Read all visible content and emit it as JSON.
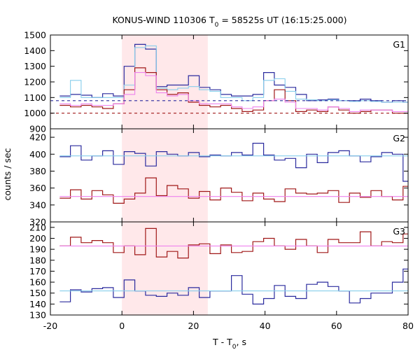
{
  "chart_data": {
    "type": "line",
    "title": {
      "pre": "KONUS-WIND 110306 T",
      "sub": "0",
      "post": " = 58525s UT (16:15:25.000)"
    },
    "xlabel": {
      "pre": "T - T",
      "sub": "0",
      "post": ", s"
    },
    "ylabel": "counts / sec",
    "xlim": [
      -20,
      80
    ],
    "xticks": [
      -20,
      0,
      20,
      40,
      60,
      80
    ],
    "grid": false,
    "shaded_interval": [
      0,
      24
    ],
    "colors": {
      "series_high": "#2b2b9e",
      "series_low": "#a01818",
      "fit_high": "#87ceeb",
      "fit_low": "#ee82ee",
      "shade": "#ffe8ea"
    },
    "bin_edges": [
      -17.4,
      -14.4,
      -11.4,
      -8.4,
      -5.4,
      -2.4,
      0.6,
      3.6,
      6.6,
      9.6,
      12.6,
      15.6,
      18.6,
      21.6,
      24.6,
      27.6,
      30.6,
      33.6,
      36.6,
      39.6,
      42.6,
      45.6,
      48.6,
      51.6,
      54.6,
      57.6,
      60.6,
      63.6,
      66.6,
      69.6,
      72.6,
      75.6,
      78.6,
      81.6
    ],
    "panels": [
      {
        "label": "G1",
        "ylim": [
          900,
          1500
        ],
        "yticks": [
          900,
          1000,
          1100,
          1200,
          1300,
          1400,
          1500
        ],
        "series": [
          {
            "role": "series_high",
            "values": [
              1110,
              1120,
              1115,
              1100,
              1125,
              1110,
              1300,
              1440,
              1410,
              1170,
              1180,
              1180,
              1240,
              1165,
              1150,
              1120,
              1110,
              1110,
              1120,
              1260,
              1180,
              1165,
              1120,
              1080,
              1085,
              1090,
              1080,
              1080,
              1090,
              1080,
              1070,
              1080,
              1070
            ]
          },
          {
            "role": "fit_high",
            "values": [
              1100,
              1210,
              1100,
              1100,
              1100,
              1100,
              1180,
              1420,
              1430,
              1160,
              1150,
              1160,
              1170,
              1150,
              1140,
              1100,
              1100,
              1080,
              1100,
              1210,
              1220,
              1140,
              1090,
              1085,
              1080,
              1085,
              1080,
              1075,
              1080,
              1075,
              1070,
              1070,
              1070
            ]
          },
          {
            "role": "series_low",
            "values": [
              1050,
              1040,
              1050,
              1040,
              1030,
              1060,
              1150,
              1290,
              1260,
              1150,
              1120,
              1130,
              1070,
              1050,
              1040,
              1050,
              1030,
              1010,
              1020,
              1080,
              1150,
              1080,
              1010,
              1020,
              1010,
              1040,
              1020,
              1000,
              1010,
              1020,
              1020,
              1000,
              1000
            ]
          },
          {
            "role": "fit_low",
            "values": [
              1060,
              1050,
              1060,
              1050,
              1050,
              1060,
              1120,
              1260,
              1240,
              1130,
              1110,
              1120,
              1080,
              1060,
              1060,
              1060,
              1040,
              1030,
              1040,
              1080,
              1090,
              1070,
              1030,
              1030,
              1020,
              1040,
              1030,
              1010,
              1020,
              1020,
              1020,
              1010,
              1010
            ]
          }
        ],
        "background_levels": [
          {
            "role": "series_high",
            "value": 1080
          },
          {
            "role": "series_low",
            "value": 1000
          }
        ]
      },
      {
        "label": "G2",
        "ylim": [
          320,
          430
        ],
        "yticks": [
          320,
          340,
          360,
          380,
          400,
          420
        ],
        "series": [
          {
            "role": "series_high",
            "values": [
              397,
              410,
              393,
              398,
              404,
              388,
              403,
              401,
              386,
              403,
              400,
              398,
              402,
              397,
              399,
              398,
              402,
              399,
              413,
              399,
              393,
              395,
              384,
              400,
              390,
              402,
              404,
              398,
              391,
              397,
              402,
              400,
              368
            ]
          },
          {
            "role": "fit_high",
            "values": [
              398,
              398,
              398,
              398,
              398,
              398,
              398,
              398,
              398,
              398,
              398,
              398,
              398,
              398,
              398,
              398,
              398,
              398,
              398,
              398,
              398,
              398,
              398,
              398,
              398,
              398,
              398,
              398,
              398,
              398,
              398,
              398,
              398
            ]
          },
          {
            "role": "series_low",
            "values": [
              348,
              358,
              347,
              357,
              352,
              342,
              347,
              354,
              372,
              351,
              363,
              359,
              348,
              356,
              346,
              360,
              355,
              345,
              354,
              347,
              344,
              359,
              354,
              353,
              354,
              357,
              343,
              354,
              349,
              357,
              350,
              346,
              362
            ]
          },
          {
            "role": "fit_low",
            "values": [
              350,
              350,
              350,
              350,
              350,
              350,
              350,
              350,
              350,
              350,
              350,
              350,
              350,
              350,
              350,
              350,
              350,
              350,
              350,
              350,
              350,
              350,
              350,
              350,
              350,
              350,
              350,
              350,
              350,
              350,
              350,
              350,
              350
            ]
          }
        ]
      },
      {
        "label": "G3",
        "ylim": [
          130,
          215
        ],
        "yticks": [
          130,
          140,
          150,
          160,
          170,
          180,
          190,
          200,
          210
        ],
        "series": [
          {
            "role": "series_low",
            "values": [
              193,
              201,
              196,
              198,
              196,
              187,
              193,
              185,
              209,
              183,
              188,
              182,
              194,
              195,
              186,
              194,
              187,
              188,
              197,
              200,
              193,
              190,
              199,
              193,
              187,
              199,
              196,
              196,
              206,
              193,
              197,
              196,
              204
            ]
          },
          {
            "role": "fit_low",
            "values": [
              193,
              193,
              193,
              193,
              193,
              193,
              193,
              193,
              193,
              193,
              193,
              193,
              193,
              193,
              193,
              193,
              193,
              193,
              193,
              193,
              193,
              193,
              193,
              193,
              193,
              193,
              193,
              193,
              193,
              193,
              193,
              193,
              193
            ]
          },
          {
            "role": "series_high",
            "values": [
              142,
              153,
              151,
              154,
              155,
              146,
              162,
              152,
              148,
              147,
              150,
              148,
              155,
              146,
              152,
              152,
              166,
              149,
              140,
              145,
              157,
              147,
              145,
              158,
              160,
              156,
              152,
              141,
              145,
              150,
              150,
              160,
              172
            ]
          },
          {
            "role": "fit_high",
            "values": [
              152,
              152,
              152,
              152,
              152,
              152,
              152,
              152,
              152,
              152,
              152,
              152,
              152,
              152,
              152,
              152,
              152,
              152,
              152,
              152,
              152,
              152,
              152,
              152,
              152,
              152,
              152,
              152,
              152,
              152,
              152,
              152,
              152
            ]
          }
        ]
      }
    ]
  }
}
